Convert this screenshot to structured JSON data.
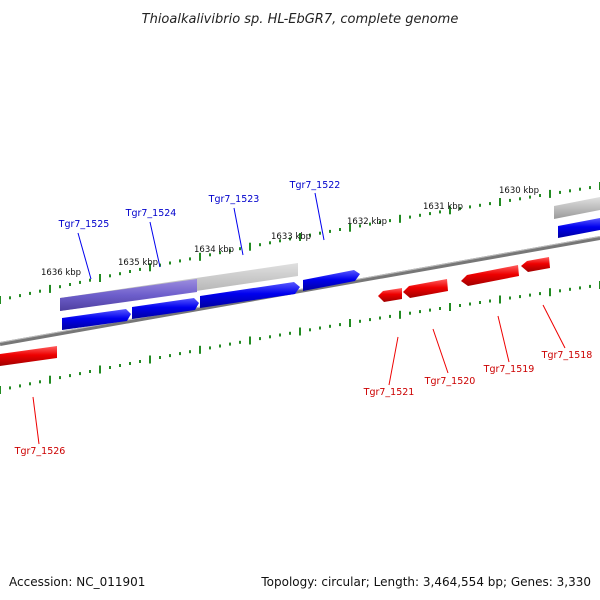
{
  "title": "Thioalkalivibrio sp. HL-EbGR7, complete genome",
  "accession": "Accession: NC_011901",
  "summary": "Topology: circular; Length: 3,464,554 bp; Genes: 3,330",
  "colors": {
    "forward": "#0000ee",
    "reverse": "#ee0000",
    "highlight": "#6a5acd",
    "tick": "#228b22",
    "backbone": "#808080"
  },
  "kbp_labels": [
    "1636 kbp",
    "1635 kbp",
    "1634 kbp",
    "1633 kbp",
    "1632 kbp",
    "1631 kbp",
    "1630 kbp"
  ],
  "forward_genes": [
    "Tgr7_1525",
    "Tgr7_1524",
    "Tgr7_1523",
    "Tgr7_1522"
  ],
  "reverse_genes": [
    "Tgr7_1526",
    "Tgr7_1521",
    "Tgr7_1520",
    "Tgr7_1519",
    "Tgr7_1518"
  ]
}
